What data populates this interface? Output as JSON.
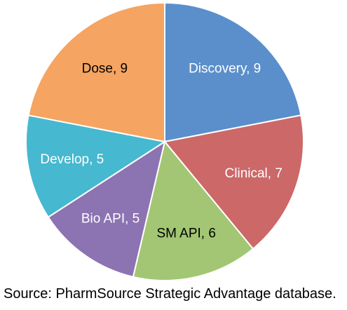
{
  "chart_data": {
    "type": "pie",
    "slices": [
      {
        "label": "Discovery",
        "value": 9,
        "display": "Discovery, 9",
        "color": "#5b8fcb",
        "text_color": "#ffffff"
      },
      {
        "label": "Clinical",
        "value": 7,
        "display": "Clinical, 7",
        "color": "#cc6868",
        "text_color": "#ffffff"
      },
      {
        "label": "SM API",
        "value": 6,
        "display": "SM API, 6",
        "color": "#a2c673",
        "text_color": "#000000"
      },
      {
        "label": "Bio API",
        "value": 5,
        "display": "Bio API, 5",
        "color": "#8c73b2",
        "text_color": "#ffffff"
      },
      {
        "label": "Develop",
        "value": 5,
        "display": "Develop, 5",
        "color": "#46b8d0",
        "text_color": "#ffffff"
      },
      {
        "label": "Dose",
        "value": 9,
        "display": "Dose, 9",
        "color": "#f5a461",
        "text_color": "#000000"
      }
    ],
    "start": "12 o'clock",
    "direction": "clockwise",
    "slice_border_color": "#ffffff",
    "legend": "none"
  },
  "source_note": "Source: PharmSource Strategic Advantage database."
}
